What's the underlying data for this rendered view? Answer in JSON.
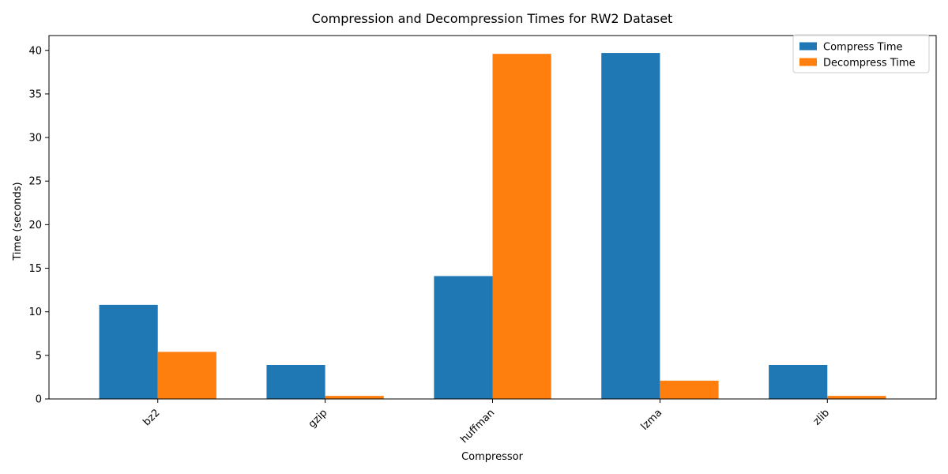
{
  "chart_data": {
    "type": "bar",
    "title": "Compression and Decompression Times for RW2 Dataset",
    "xlabel": "Compressor",
    "ylabel": "Time (seconds)",
    "categories": [
      "bz2",
      "gzip",
      "huffman",
      "lzma",
      "zlib"
    ],
    "series": [
      {
        "name": "Compress Time",
        "color": "#1f77b4",
        "values": [
          10.8,
          3.9,
          14.1,
          39.7,
          3.9
        ]
      },
      {
        "name": "Decompress Time",
        "color": "#ff7f0e",
        "values": [
          5.4,
          0.35,
          39.6,
          2.1,
          0.35
        ]
      }
    ],
    "ylim": [
      0,
      41.7
    ],
    "yticks": [
      0,
      5,
      10,
      15,
      20,
      25,
      30,
      35,
      40
    ],
    "legend": "top-right",
    "grid": false,
    "xtick_rotation": 45
  }
}
